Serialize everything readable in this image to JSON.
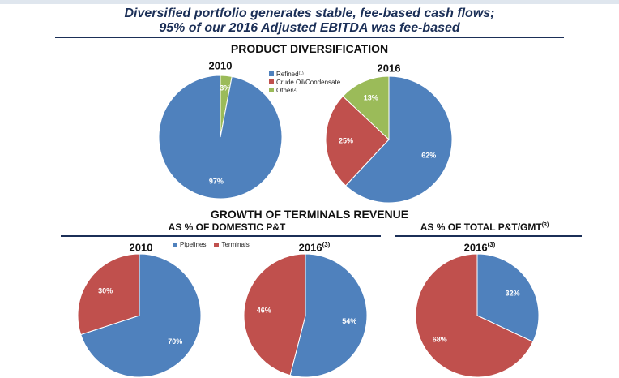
{
  "headline": {
    "line1": "Diversified portfolio generates stable, fee-based cash flows;",
    "line2": "95% of our 2016 Adjusted EBITDA was fee-based"
  },
  "sections": {
    "product": "PRODUCT DIVERSIFICATION",
    "growth": "GROWTH OF TERMINALS REVENUE",
    "domestic": "AS % OF DOMESTIC P&T",
    "total": "AS % OF TOTAL P&T/GMT",
    "total_sup": "(3)"
  },
  "legend_product": [
    {
      "label": "Refined",
      "sup": "(1)",
      "color": "#4f81bd"
    },
    {
      "label": "Crude Oil/Condensate",
      "sup": "",
      "color": "#c0504d"
    },
    {
      "label": "Other",
      "sup": "(2)",
      "color": "#9bbb59"
    }
  ],
  "legend_terminals": [
    {
      "label": "Pipelines",
      "color": "#4f81bd"
    },
    {
      "label": "Terminals",
      "color": "#c0504d"
    }
  ],
  "chart_data": [
    {
      "type": "pie",
      "title": "2010",
      "title_sup": "",
      "series": [
        {
          "name": "Refined",
          "value": 97,
          "label": "97%",
          "color": "#4f81bd"
        },
        {
          "name": "Other",
          "value": 3,
          "label": "3%",
          "color": "#9bbb59"
        }
      ]
    },
    {
      "type": "pie",
      "title": "2016",
      "title_sup": "",
      "series": [
        {
          "name": "Refined",
          "value": 62,
          "label": "62%",
          "color": "#4f81bd"
        },
        {
          "name": "Crude Oil/Condensate",
          "value": 25,
          "label": "25%",
          "color": "#c0504d"
        },
        {
          "name": "Other",
          "value": 13,
          "label": "13%",
          "color": "#9bbb59"
        }
      ]
    },
    {
      "type": "pie",
      "title": "2010",
      "title_sup": "",
      "series": [
        {
          "name": "Pipelines",
          "value": 70,
          "label": "70%",
          "color": "#4f81bd"
        },
        {
          "name": "Terminals",
          "value": 30,
          "label": "30%",
          "color": "#c0504d"
        }
      ]
    },
    {
      "type": "pie",
      "title": "2016",
      "title_sup": "(3)",
      "series": [
        {
          "name": "Pipelines",
          "value": 54,
          "label": "54%",
          "color": "#4f81bd"
        },
        {
          "name": "Terminals",
          "value": 46,
          "label": "46%",
          "color": "#c0504d"
        }
      ]
    },
    {
      "type": "pie",
      "title": "2016",
      "title_sup": "(3)",
      "series": [
        {
          "name": "Pipelines",
          "value": 32,
          "label": "32%",
          "color": "#4f81bd"
        },
        {
          "name": "Terminals",
          "value": 68,
          "label": "68%",
          "color": "#c0504d"
        }
      ]
    }
  ]
}
